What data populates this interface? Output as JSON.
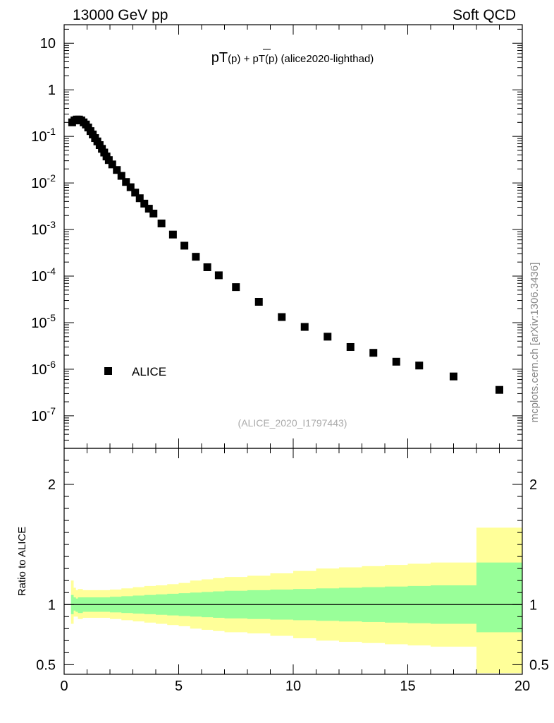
{
  "header": {
    "left": "13000 GeV pp",
    "right": "Soft QCD",
    "side_label": "mcplots.cern.ch [arXiv:1306.3436]"
  },
  "chart_data": {
    "type": "scatter",
    "title_parts": {
      "main": "pT",
      "a": "(p)",
      "plus": " + pT",
      "b": "(p)",
      "suffix": " (alice2020-lighthad)"
    },
    "ref_label": "(ALICE_2020_I1797443)",
    "legend": {
      "label": "ALICE",
      "position": "middle-left"
    },
    "xlim": [
      0,
      20
    ],
    "ylim_log": [
      2e-08,
      25
    ],
    "x_ticks": [
      0,
      5,
      10,
      15,
      20
    ],
    "y_ticks": [
      {
        "value": 1e-07,
        "base": "10",
        "exp": "-7"
      },
      {
        "value": 1e-06,
        "base": "10",
        "exp": "-6"
      },
      {
        "value": 1e-05,
        "base": "10",
        "exp": "-5"
      },
      {
        "value": 0.0001,
        "base": "10",
        "exp": "-4"
      },
      {
        "value": 0.001,
        "base": "10",
        "exp": "-3"
      },
      {
        "value": 0.01,
        "base": "10",
        "exp": "-2"
      },
      {
        "value": 0.1,
        "base": "10",
        "exp": "-1"
      },
      {
        "value": 1,
        "base": "1",
        "exp": ""
      },
      {
        "value": 10,
        "base": "10",
        "exp": ""
      }
    ],
    "series": [
      {
        "name": "ALICE",
        "points": [
          [
            0.35,
            0.2
          ],
          [
            0.45,
            0.22
          ],
          [
            0.55,
            0.23
          ],
          [
            0.65,
            0.23
          ],
          [
            0.75,
            0.22
          ],
          [
            0.85,
            0.2
          ],
          [
            0.95,
            0.18
          ],
          [
            1.05,
            0.155
          ],
          [
            1.15,
            0.13
          ],
          [
            1.25,
            0.11
          ],
          [
            1.35,
            0.092
          ],
          [
            1.45,
            0.078
          ],
          [
            1.55,
            0.065
          ],
          [
            1.65,
            0.054
          ],
          [
            1.75,
            0.045
          ],
          [
            1.85,
            0.037
          ],
          [
            1.95,
            0.031
          ],
          [
            2.1,
            0.025
          ],
          [
            2.3,
            0.019
          ],
          [
            2.5,
            0.0142
          ],
          [
            2.7,
            0.0105
          ],
          [
            2.9,
            0.0081
          ],
          [
            3.1,
            0.0062
          ],
          [
            3.3,
            0.0047
          ],
          [
            3.5,
            0.0036
          ],
          [
            3.7,
            0.0028
          ],
          [
            3.9,
            0.0022
          ],
          [
            4.25,
            0.00135
          ],
          [
            4.75,
            0.00078
          ],
          [
            5.25,
            0.00045
          ],
          [
            5.75,
            0.00026
          ],
          [
            6.25,
            0.000155
          ],
          [
            6.75,
            0.000104
          ],
          [
            7.5,
            5.8e-05
          ],
          [
            8.5,
            2.8e-05
          ],
          [
            9.5,
            1.32e-05
          ],
          [
            10.5,
            8.1e-06
          ],
          [
            11.5,
            5e-06
          ],
          [
            12.5,
            3e-06
          ],
          [
            13.5,
            2.25e-06
          ],
          [
            14.5,
            1.45e-06
          ],
          [
            15.5,
            1.2e-06
          ],
          [
            17.0,
            7e-07
          ],
          [
            19.0,
            3.6e-07
          ]
        ]
      }
    ],
    "ratio": {
      "ylabel": "Ratio to ALICE",
      "ylim": [
        0.42,
        2.3
      ],
      "y_ticks": [
        {
          "value": 0.5,
          "label": "0.5"
        },
        {
          "value": 1,
          "label": "1"
        },
        {
          "value": 2,
          "label": "2"
        }
      ],
      "colors": {
        "outer": "#ffff99",
        "inner": "#99ff99",
        "line": "#000000"
      },
      "bands": [
        {
          "x": [
            0.3,
            0.4
          ],
          "inner": [
            0.92,
            1.08
          ],
          "outer": [
            0.84,
            1.2
          ]
        },
        {
          "x": [
            0.4,
            0.5
          ],
          "inner": [
            0.95,
            1.06
          ],
          "outer": [
            0.9,
            1.14
          ]
        },
        {
          "x": [
            0.5,
            0.6
          ],
          "inner": [
            0.94,
            1.05
          ],
          "outer": [
            0.9,
            1.12
          ]
        },
        {
          "x": [
            0.6,
            0.8
          ],
          "inner": [
            0.93,
            1.06
          ],
          "outer": [
            0.88,
            1.13
          ]
        },
        {
          "x": [
            0.8,
            1.0
          ],
          "inner": [
            0.94,
            1.06
          ],
          "outer": [
            0.89,
            1.12
          ]
        },
        {
          "x": [
            1.0,
            1.5
          ],
          "inner": [
            0.94,
            1.06
          ],
          "outer": [
            0.89,
            1.12
          ]
        },
        {
          "x": [
            1.5,
            2.0
          ],
          "inner": [
            0.94,
            1.06
          ],
          "outer": [
            0.89,
            1.12
          ]
        },
        {
          "x": [
            2.0,
            2.5
          ],
          "inner": [
            0.935,
            1.065
          ],
          "outer": [
            0.88,
            1.125
          ]
        },
        {
          "x": [
            2.5,
            3.0
          ],
          "inner": [
            0.93,
            1.07
          ],
          "outer": [
            0.87,
            1.135
          ]
        },
        {
          "x": [
            3.0,
            3.5
          ],
          "inner": [
            0.925,
            1.075
          ],
          "outer": [
            0.86,
            1.145
          ]
        },
        {
          "x": [
            3.5,
            4.0
          ],
          "inner": [
            0.92,
            1.08
          ],
          "outer": [
            0.85,
            1.155
          ]
        },
        {
          "x": [
            4.0,
            4.5
          ],
          "inner": [
            0.915,
            1.085
          ],
          "outer": [
            0.84,
            1.16
          ]
        },
        {
          "x": [
            4.5,
            5.0
          ],
          "inner": [
            0.91,
            1.09
          ],
          "outer": [
            0.83,
            1.17
          ]
        },
        {
          "x": [
            5.0,
            5.5
          ],
          "inner": [
            0.905,
            1.095
          ],
          "outer": [
            0.82,
            1.18
          ]
        },
        {
          "x": [
            5.5,
            6.0
          ],
          "inner": [
            0.9,
            1.1
          ],
          "outer": [
            0.8,
            1.2
          ]
        },
        {
          "x": [
            6.0,
            6.5
          ],
          "inner": [
            0.895,
            1.105
          ],
          "outer": [
            0.79,
            1.21
          ]
        },
        {
          "x": [
            6.5,
            7.0
          ],
          "inner": [
            0.89,
            1.11
          ],
          "outer": [
            0.78,
            1.22
          ]
        },
        {
          "x": [
            7.0,
            8.0
          ],
          "inner": [
            0.885,
            1.115
          ],
          "outer": [
            0.77,
            1.23
          ]
        },
        {
          "x": [
            8.0,
            9.0
          ],
          "inner": [
            0.88,
            1.12
          ],
          "outer": [
            0.76,
            1.24
          ]
        },
        {
          "x": [
            9.0,
            10.0
          ],
          "inner": [
            0.875,
            1.125
          ],
          "outer": [
            0.74,
            1.26
          ]
        },
        {
          "x": [
            10.0,
            11.0
          ],
          "inner": [
            0.87,
            1.13
          ],
          "outer": [
            0.72,
            1.28
          ]
        },
        {
          "x": [
            11.0,
            12.0
          ],
          "inner": [
            0.865,
            1.135
          ],
          "outer": [
            0.7,
            1.3
          ]
        },
        {
          "x": [
            12.0,
            13.0
          ],
          "inner": [
            0.86,
            1.14
          ],
          "outer": [
            0.69,
            1.31
          ]
        },
        {
          "x": [
            13.0,
            14.0
          ],
          "inner": [
            0.855,
            1.145
          ],
          "outer": [
            0.68,
            1.32
          ]
        },
        {
          "x": [
            14.0,
            15.0
          ],
          "inner": [
            0.85,
            1.15
          ],
          "outer": [
            0.67,
            1.33
          ]
        },
        {
          "x": [
            15.0,
            16.0
          ],
          "inner": [
            0.845,
            1.155
          ],
          "outer": [
            0.66,
            1.34
          ]
        },
        {
          "x": [
            16.0,
            18.0
          ],
          "inner": [
            0.84,
            1.16
          ],
          "outer": [
            0.65,
            1.35
          ]
        },
        {
          "x": [
            18.0,
            20.0
          ],
          "inner": [
            0.77,
            1.35
          ],
          "outer": [
            0.43,
            1.64
          ]
        }
      ]
    }
  }
}
